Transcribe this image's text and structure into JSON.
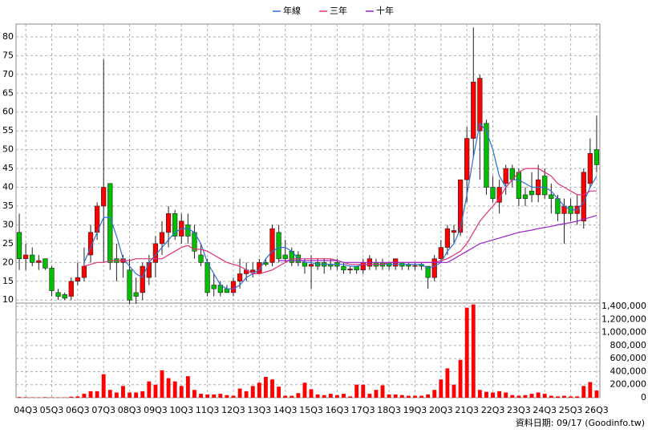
{
  "chart_data": {
    "type": "candlestick",
    "categories": [
      null,
      "04Q3",
      null,
      null,
      null,
      "05Q3",
      null,
      null,
      null,
      "06Q3",
      null,
      null,
      null,
      "07Q3",
      null,
      null,
      null,
      "08Q3",
      null,
      null,
      null,
      "09Q3",
      null,
      null,
      null,
      "10Q3",
      null,
      null,
      null,
      "11Q3",
      null,
      null,
      null,
      "12Q3",
      null,
      null,
      null,
      "13Q3",
      null,
      null,
      null,
      "14Q3",
      null,
      null,
      null,
      "15Q3",
      null,
      null,
      null,
      "16Q3",
      null,
      null,
      null,
      "17Q3",
      null,
      null,
      null,
      "18Q3",
      null,
      null,
      null,
      "19Q3",
      null,
      null,
      null,
      "20Q3",
      null,
      null,
      null,
      "21Q3",
      null,
      null,
      null,
      "22Q3",
      null,
      null,
      null,
      "23Q3",
      null,
      null,
      null,
      "24Q3",
      null,
      null,
      null,
      "25Q3",
      null,
      null,
      null,
      "26Q3"
    ],
    "open": [
      28,
      21,
      22,
      20,
      21,
      18.5,
      12,
      11.5,
      11,
      15,
      16,
      22,
      28,
      35,
      41,
      21,
      20,
      18,
      12,
      12,
      16,
      20,
      25,
      28,
      33,
      27,
      30,
      28,
      22,
      20,
      14,
      14,
      13,
      12,
      15,
      17,
      17.5,
      17,
      20,
      20,
      28,
      22,
      23,
      22,
      20,
      19,
      20,
      20,
      19.5,
      20,
      19,
      18,
      19,
      18,
      19,
      20,
      20,
      20,
      19,
      20,
      19.5,
      19,
      19.5,
      19,
      16,
      21,
      24,
      28,
      28,
      42,
      53,
      55,
      57,
      40,
      36,
      41,
      45,
      44,
      38,
      39,
      38,
      43,
      38,
      37,
      33,
      35,
      33,
      31,
      41,
      50
    ],
    "high": [
      33,
      25,
      24,
      22,
      21,
      19,
      13,
      12,
      16,
      20,
      24,
      30,
      36,
      74,
      41,
      25,
      22,
      21,
      16,
      20,
      22,
      27,
      31,
      35,
      34,
      33,
      33,
      30,
      25,
      21,
      17,
      15,
      14,
      16,
      21,
      20,
      20,
      21,
      21,
      30,
      30,
      26,
      24,
      23,
      21,
      22,
      21,
      21,
      21,
      21,
      20,
      19,
      19,
      21,
      22,
      21,
      21,
      20,
      21,
      20,
      20,
      20,
      20,
      19,
      22,
      26,
      30,
      30,
      42,
      56,
      82.5,
      70,
      58,
      43,
      42,
      46,
      46,
      45,
      40,
      44,
      46,
      45,
      41,
      38,
      37,
      37,
      38,
      45,
      53,
      59
    ],
    "low": [
      18,
      18,
      19,
      18,
      18,
      11,
      10,
      10,
      10,
      14,
      15,
      20,
      26,
      20,
      18,
      15,
      16,
      9,
      9,
      10,
      14,
      16,
      22,
      24,
      26,
      25,
      25,
      21,
      19,
      11,
      11,
      11,
      12,
      11,
      13,
      15,
      16,
      17,
      19,
      19,
      20,
      20,
      19,
      19,
      17,
      13,
      18,
      17,
      18,
      18,
      17,
      17,
      17,
      17,
      18,
      18,
      18,
      18,
      18,
      18,
      18,
      18,
      18,
      13,
      15,
      20,
      22,
      25,
      27,
      36,
      48,
      42,
      38,
      36,
      33,
      38,
      40,
      35,
      35,
      36,
      36,
      37,
      33,
      31,
      25,
      31,
      30,
      29,
      40,
      44
    ],
    "close": [
      21,
      22,
      20,
      20.5,
      18.5,
      12.5,
      11,
      10.5,
      15,
      16,
      19,
      28,
      35,
      40,
      20,
      20,
      21,
      10,
      11,
      19,
      20,
      25,
      28,
      33,
      27,
      31,
      27,
      23,
      20,
      12,
      13,
      12,
      12,
      15,
      17,
      18,
      18,
      20,
      19.5,
      29,
      21,
      21,
      20,
      20,
      19,
      19.5,
      19,
      19,
      19,
      19,
      18,
      18.3,
      18,
      20,
      21,
      19,
      19,
      19,
      21,
      19,
      19,
      19.2,
      19,
      16,
      21,
      24,
      29,
      28.5,
      42,
      53,
      68,
      69,
      40,
      37,
      40,
      45,
      42,
      37,
      37,
      38,
      42,
      38,
      37,
      33,
      35,
      33,
      35,
      44,
      49,
      46
    ],
    "up_color": "#ff0000",
    "down_color": "#00c000",
    "series": [
      {
        "name": "年線",
        "color": "#2f6fd6",
        "values": [
          null,
          null,
          null,
          null,
          null,
          null,
          null,
          null,
          null,
          null,
          20,
          24,
          28,
          32,
          32,
          27,
          21,
          19,
          17,
          16,
          20,
          22,
          24,
          26,
          28,
          29,
          29,
          28,
          25,
          20,
          17,
          14,
          13,
          13,
          14,
          16,
          17,
          18,
          21,
          23,
          24,
          24,
          23,
          21,
          20,
          20,
          19.5,
          19.5,
          19.5,
          19.5,
          19.5,
          19,
          19,
          19.5,
          19.5,
          19.5,
          19.5,
          19.5,
          19.5,
          19.5,
          19.5,
          19.5,
          19.5,
          18.5,
          19,
          20,
          23,
          25,
          29,
          38,
          48,
          57,
          55,
          50,
          43,
          40,
          42,
          42,
          41,
          40,
          40,
          40,
          39,
          37,
          35,
          34,
          34,
          36,
          40,
          43
        ]
      },
      {
        "name": "三年",
        "color": "#e0307a",
        "values": [
          null,
          null,
          null,
          null,
          null,
          null,
          null,
          null,
          null,
          null,
          19,
          19.5,
          20,
          20,
          20.5,
          20.5,
          20.5,
          20.5,
          21,
          21,
          21,
          21,
          21,
          22,
          23,
          24,
          24.5,
          23.5,
          23.5,
          23,
          22,
          21,
          20,
          19.5,
          19,
          18,
          17,
          17,
          17.5,
          18,
          19,
          20,
          21,
          21,
          21,
          21,
          21,
          21,
          21,
          20.5,
          20,
          19.5,
          19.5,
          19.5,
          19.5,
          19.5,
          19.5,
          20,
          20,
          20,
          20,
          20,
          20,
          20,
          20,
          20.5,
          21,
          22,
          23,
          25,
          28,
          31,
          33,
          35,
          37,
          40,
          42,
          44,
          45,
          45,
          45,
          44,
          43,
          41,
          40,
          39,
          38,
          38,
          39,
          39
        ]
      },
      {
        "name": "十年",
        "color": "#9a22c8",
        "values": [
          null,
          null,
          null,
          null,
          null,
          null,
          null,
          null,
          null,
          null,
          null,
          null,
          null,
          null,
          null,
          null,
          null,
          null,
          null,
          null,
          null,
          null,
          null,
          null,
          null,
          null,
          null,
          null,
          null,
          null,
          null,
          null,
          null,
          null,
          null,
          null,
          null,
          null,
          null,
          null,
          20.5,
          20.5,
          20.5,
          20.5,
          20.5,
          20.5,
          20.5,
          20.5,
          20.5,
          20.5,
          20,
          20,
          20,
          20,
          20,
          20,
          20,
          20,
          20,
          20,
          20,
          20,
          20,
          20,
          20,
          20,
          20,
          21,
          22,
          23,
          24,
          25,
          25.5,
          26,
          26.5,
          27,
          27.5,
          28,
          28.3,
          28.6,
          29,
          29.3,
          29.6,
          30,
          30.3,
          30.6,
          31,
          31.5,
          32,
          32.5
        ]
      }
    ],
    "ylim": [
      9.2,
      83.4
    ],
    "yticks": [
      10,
      15,
      20,
      25,
      30,
      35,
      40,
      45,
      50,
      55,
      60,
      65,
      70,
      75,
      80
    ],
    "grid": true,
    "volume": {
      "color": "#ff0000",
      "values": [
        10000,
        8000,
        6000,
        5000,
        8000,
        6000,
        5000,
        5000,
        15000,
        20000,
        60000,
        100000,
        100000,
        360000,
        120000,
        80000,
        180000,
        80000,
        80000,
        100000,
        250000,
        200000,
        420000,
        300000,
        250000,
        180000,
        330000,
        120000,
        60000,
        50000,
        50000,
        60000,
        40000,
        30000,
        140000,
        100000,
        180000,
        230000,
        320000,
        280000,
        170000,
        30000,
        30000,
        70000,
        230000,
        130000,
        50000,
        40000,
        60000,
        40000,
        60000,
        20000,
        200000,
        200000,
        60000,
        120000,
        190000,
        50000,
        50000,
        40000,
        30000,
        30000,
        30000,
        50000,
        120000,
        280000,
        450000,
        200000,
        580000,
        1380000,
        1430000,
        120000,
        90000,
        80000,
        100000,
        80000,
        40000,
        30000,
        40000,
        60000,
        80000,
        60000,
        30000,
        20000,
        30000,
        20000,
        20000,
        180000,
        240000,
        110000
      ],
      "ylim": [
        0,
        1450000
      ],
      "yticks": [
        0,
        {
          "value": 200000,
          "label": "200,000"
        },
        {
          "value": 400000,
          "label": "400,000"
        },
        {
          "value": 600000,
          "label": "600,000"
        },
        {
          "value": 800000,
          "label": "800,000"
        },
        {
          "value": 1000000,
          "label": "1,000,000"
        },
        {
          "value": 1200000,
          "label": "1,200,000"
        },
        {
          "value": 1400000,
          "label": "1,400,000"
        }
      ]
    },
    "footer": "資料日期: 09/17  (Goodinfo.tw)"
  }
}
